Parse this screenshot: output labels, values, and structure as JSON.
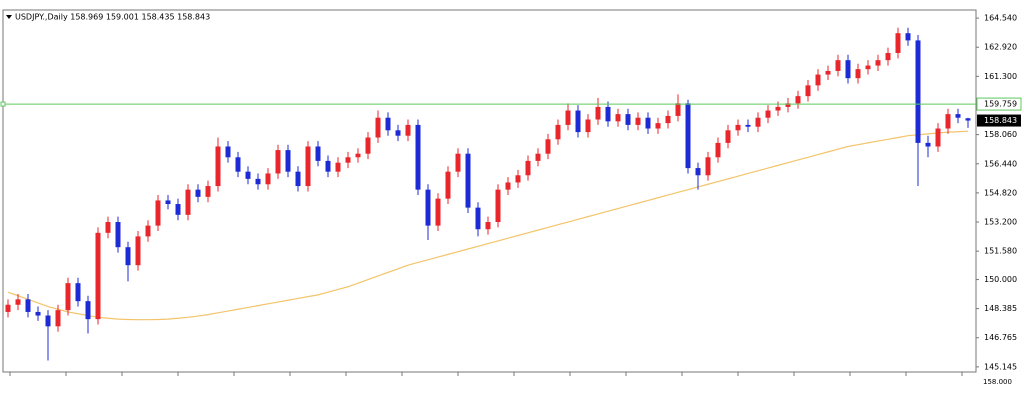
{
  "chart_data": {
    "type": "candlestick",
    "title": "USDJPY.,Daily 158.969 159.001 158.435 158.843",
    "bull_color": "#e8262b",
    "bear_color": "#1d2bd6",
    "open": [
      148.2,
      148.6,
      148.9,
      148.2,
      148.0,
      147.4,
      148.3,
      149.8,
      148.8,
      147.8,
      152.6,
      153.2,
      151.8,
      150.8,
      152.4,
      153.0,
      154.4,
      154.2,
      153.6,
      155.0,
      154.6,
      155.2,
      157.4,
      156.8,
      156.0,
      155.6,
      155.3,
      155.9,
      157.2,
      156.0,
      155.2,
      157.4,
      156.6,
      156.0,
      156.5,
      156.8,
      157.0,
      157.9,
      159.0,
      158.3,
      158.0,
      158.6,
      155.0,
      153.0,
      154.5,
      156.0,
      157.0,
      154.0,
      152.8,
      153.2,
      155.0,
      155.4,
      155.8,
      156.6,
      157.0,
      157.8,
      158.6,
      159.4,
      158.2,
      158.9,
      159.6,
      158.8,
      159.2,
      158.6,
      159.0,
      158.4,
      158.7,
      159.1,
      159.8,
      156.2,
      155.8,
      156.8,
      157.6,
      158.3,
      158.6,
      158.5,
      159.0,
      159.4,
      159.6,
      159.8,
      160.2,
      160.8,
      161.4,
      161.6,
      162.2,
      161.2,
      161.7,
      161.9,
      162.2,
      162.6,
      163.7,
      163.3,
      157.6,
      157.4,
      158.4,
      159.2,
      158.969
    ],
    "high": [
      148.9,
      149.2,
      149.2,
      148.5,
      148.3,
      148.6,
      150.1,
      150.1,
      149.1,
      152.9,
      153.5,
      153.5,
      152.1,
      152.7,
      153.3,
      154.7,
      154.7,
      154.5,
      155.3,
      155.3,
      155.5,
      157.9,
      157.7,
      157.1,
      156.3,
      155.9,
      156.2,
      157.5,
      157.5,
      156.3,
      157.7,
      157.7,
      156.9,
      156.8,
      157.1,
      157.3,
      158.2,
      159.4,
      159.3,
      158.6,
      158.9,
      158.9,
      155.3,
      154.8,
      156.3,
      157.3,
      157.3,
      154.3,
      153.5,
      155.3,
      155.7,
      156.1,
      156.9,
      157.3,
      158.1,
      158.9,
      159.8,
      159.7,
      159.2,
      160.1,
      159.9,
      159.5,
      159.5,
      159.3,
      159.3,
      159.0,
      159.4,
      160.3,
      160.0,
      156.5,
      157.1,
      157.9,
      158.6,
      158.9,
      158.9,
      159.3,
      159.7,
      159.9,
      160.1,
      160.5,
      161.1,
      161.7,
      161.9,
      162.5,
      162.5,
      162.0,
      162.2,
      162.5,
      162.9,
      164.0,
      164.0,
      163.6,
      158.0,
      158.7,
      159.5,
      159.5,
      159.001
    ],
    "low": [
      147.9,
      148.3,
      147.9,
      147.7,
      145.5,
      147.1,
      148.0,
      148.5,
      147.0,
      147.5,
      152.3,
      151.5,
      149.9,
      150.5,
      152.1,
      152.7,
      153.9,
      153.3,
      153.3,
      154.3,
      154.3,
      154.9,
      156.5,
      155.7,
      155.3,
      155.0,
      155.0,
      155.6,
      155.7,
      154.9,
      154.9,
      156.3,
      155.7,
      155.7,
      156.2,
      156.5,
      156.7,
      157.6,
      158.0,
      157.7,
      157.7,
      154.7,
      152.2,
      152.7,
      154.2,
      155.7,
      153.7,
      152.4,
      152.5,
      152.9,
      154.7,
      155.1,
      155.5,
      156.3,
      156.7,
      157.5,
      158.3,
      157.9,
      157.9,
      158.6,
      158.5,
      158.5,
      158.3,
      158.3,
      158.1,
      158.1,
      158.4,
      158.8,
      155.9,
      155.0,
      155.5,
      156.5,
      157.3,
      158.0,
      158.2,
      158.2,
      158.7,
      159.1,
      159.3,
      159.5,
      159.9,
      160.5,
      161.1,
      161.3,
      160.9,
      160.9,
      161.4,
      161.6,
      161.9,
      162.3,
      163.0,
      155.2,
      156.8,
      157.1,
      158.1,
      158.7,
      158.435
    ],
    "close": [
      148.6,
      148.9,
      148.2,
      148.0,
      147.4,
      148.3,
      149.8,
      148.8,
      147.8,
      152.6,
      153.2,
      151.8,
      150.8,
      152.4,
      153.0,
      154.4,
      154.2,
      153.6,
      155.0,
      154.6,
      155.2,
      157.4,
      156.8,
      156.0,
      155.6,
      155.3,
      155.9,
      157.2,
      156.0,
      155.2,
      157.4,
      156.6,
      156.0,
      156.5,
      156.8,
      157.0,
      157.9,
      159.0,
      158.3,
      158.0,
      158.6,
      155.0,
      153.0,
      154.5,
      156.0,
      157.0,
      154.0,
      152.8,
      153.2,
      155.0,
      155.4,
      155.8,
      156.6,
      157.0,
      157.8,
      158.6,
      159.4,
      158.2,
      158.9,
      159.6,
      158.8,
      159.2,
      158.6,
      159.0,
      158.4,
      158.7,
      159.1,
      159.8,
      156.2,
      155.8,
      156.8,
      157.6,
      158.3,
      158.6,
      158.5,
      159.0,
      159.4,
      159.6,
      159.8,
      160.2,
      160.8,
      161.4,
      161.6,
      162.2,
      161.2,
      161.7,
      161.9,
      162.2,
      162.6,
      163.7,
      163.3,
      157.6,
      157.4,
      158.4,
      159.2,
      159.0,
      158.843
    ],
    "moving_average": {
      "color": "#f3c46a",
      "values": [
        149.3,
        149.1,
        148.9,
        148.7,
        148.5,
        148.35,
        148.2,
        148.1,
        148.0,
        147.9,
        147.85,
        147.8,
        147.78,
        147.77,
        147.77,
        147.78,
        147.8,
        147.85,
        147.9,
        147.97,
        148.05,
        148.15,
        148.25,
        148.35,
        148.45,
        148.55,
        148.65,
        148.75,
        148.85,
        148.95,
        149.05,
        149.15,
        149.3,
        149.45,
        149.6,
        149.8,
        150.0,
        150.2,
        150.4,
        150.6,
        150.8,
        150.95,
        151.1,
        151.25,
        151.4,
        151.55,
        151.7,
        151.85,
        152.0,
        152.15,
        152.3,
        152.45,
        152.6,
        152.75,
        152.9,
        153.05,
        153.2,
        153.35,
        153.5,
        153.65,
        153.8,
        153.95,
        154.1,
        154.25,
        154.4,
        154.55,
        154.7,
        154.85,
        155.0,
        155.15,
        155.3,
        155.45,
        155.6,
        155.75,
        155.9,
        156.05,
        156.2,
        156.35,
        156.5,
        156.65,
        156.8,
        156.95,
        157.1,
        157.25,
        157.4,
        157.5,
        157.6,
        157.7,
        157.8,
        157.9,
        158.0,
        158.05,
        158.1,
        158.15,
        158.2,
        158.22,
        158.25
      ]
    },
    "hline": {
      "value": 159.759,
      "label": "159.759",
      "color": "#5cc95c"
    },
    "last_price": {
      "value": 158.843,
      "label": "158.843"
    },
    "ylim": [
      144.86,
      164.99
    ],
    "yticks": [
      {
        "value": 164.54,
        "label": "164.540"
      },
      {
        "value": 162.92,
        "label": "162.920"
      },
      {
        "value": 161.3,
        "label": "161.300"
      },
      {
        "value": 158.06,
        "label": "158.060"
      },
      {
        "value": 156.44,
        "label": "156.440"
      },
      {
        "value": 154.82,
        "label": "154.820"
      },
      {
        "value": 153.2,
        "label": "153.200"
      },
      {
        "value": 151.58,
        "label": "151.580"
      },
      {
        "value": 150.0,
        "label": "150.000"
      },
      {
        "value": 148.385,
        "label": "148.385"
      },
      {
        "value": 146.765,
        "label": "146.765"
      },
      {
        "value": 145.145,
        "label": "145.145"
      }
    ],
    "subwindow_label": "158.000"
  }
}
